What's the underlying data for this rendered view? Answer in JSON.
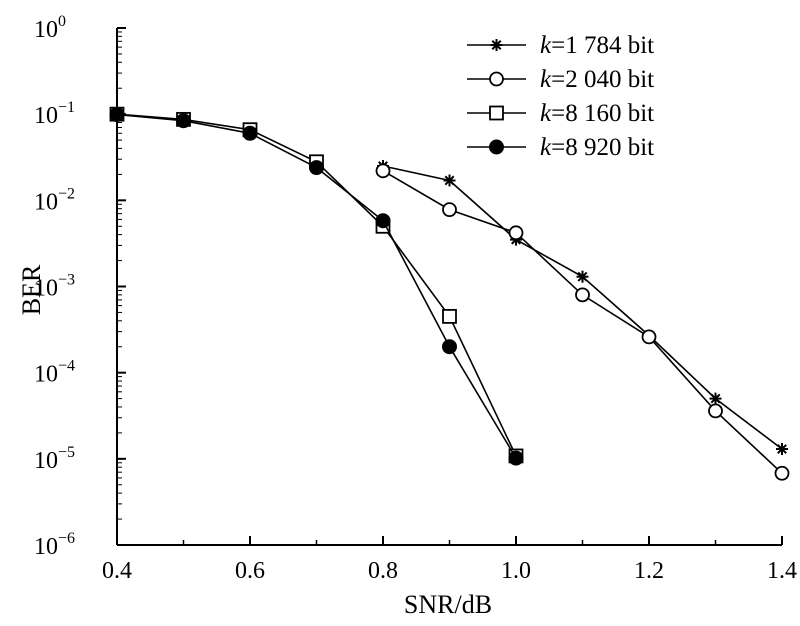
{
  "chart_data": {
    "type": "line",
    "title": "",
    "xlabel": "SNR/dB",
    "ylabel": "BER",
    "xlim": [
      0.4,
      1.4
    ],
    "ylim": [
      1e-06,
      1
    ],
    "yscale": "log",
    "grid": false,
    "legend_position": "top-right",
    "x_ticks": [
      "0.4",
      "0.6",
      "0.8",
      "1.0",
      "1.2",
      "1.4"
    ],
    "y_ticks": [
      {
        "base": "10",
        "exp": "0"
      },
      {
        "base": "10",
        "exp": "−1"
      },
      {
        "base": "10",
        "exp": "−2"
      },
      {
        "base": "10",
        "exp": "−3"
      },
      {
        "base": "10",
        "exp": "−4"
      },
      {
        "base": "10",
        "exp": "−5"
      },
      {
        "base": "10",
        "exp": "−6"
      }
    ],
    "series": [
      {
        "name_prefix": "k",
        "name_suffix": "=1 784 bit",
        "marker": "asterisk",
        "x": [
          0.8,
          0.9,
          1.0,
          1.1,
          1.2,
          1.3,
          1.4
        ],
        "y": [
          0.025,
          0.017,
          0.0035,
          0.0013,
          0.00027,
          5e-05,
          1.3e-05
        ]
      },
      {
        "name_prefix": "k",
        "name_suffix": "=2 040 bit",
        "marker": "open-circle",
        "x": [
          0.8,
          0.9,
          1.0,
          1.1,
          1.2,
          1.3,
          1.4
        ],
        "y": [
          0.022,
          0.0078,
          0.0042,
          0.0008,
          0.00026,
          3.6e-05,
          6.8e-06
        ]
      },
      {
        "name_prefix": "k",
        "name_suffix": "=8 160 bit",
        "marker": "open-square",
        "x": [
          0.4,
          0.5,
          0.6,
          0.7,
          0.8,
          0.9,
          1.0
        ],
        "y": [
          0.1,
          0.087,
          0.066,
          0.028,
          0.005,
          0.00045,
          1.08e-05
        ]
      },
      {
        "name_prefix": "k",
        "name_suffix": "=8 920 bit",
        "marker": "filled-circle",
        "x": [
          0.4,
          0.5,
          0.6,
          0.7,
          0.8,
          0.9,
          1.0
        ],
        "y": [
          0.099,
          0.084,
          0.06,
          0.024,
          0.0058,
          0.0002,
          1.02e-05
        ]
      }
    ]
  }
}
